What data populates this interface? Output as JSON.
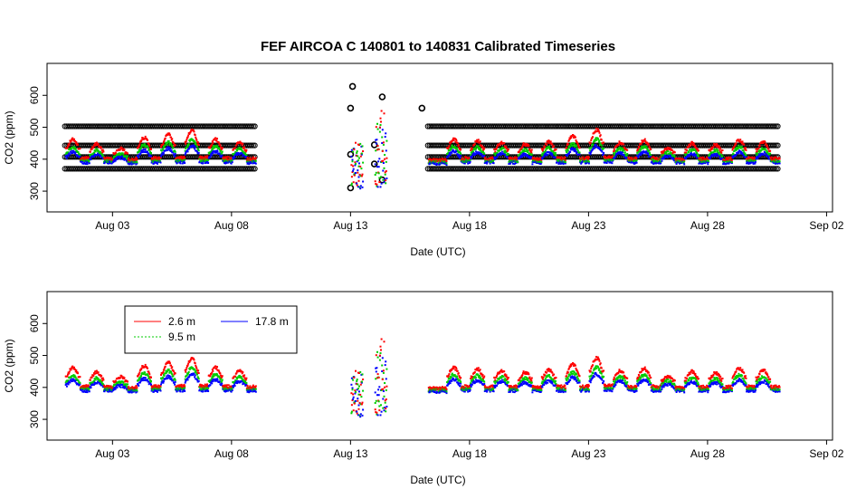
{
  "chart_data": [
    {
      "type": "scatter",
      "title": "FEF   AIRCOA  C    140801  to  140831   Calibrated Timeseries",
      "xlabel": "Date (UTC)",
      "ylabel": "CO2 (ppm)",
      "x_ticks": [
        "Aug 03",
        "Aug 08",
        "Aug 13",
        "Aug 18",
        "Aug 23",
        "Aug 28",
        "Sep 02"
      ],
      "y_ticks": [
        300,
        400,
        500,
        600
      ],
      "xlim": [
        "2014-07-31 06:00",
        "2014-09-02 06:00"
      ],
      "ylim": [
        235,
        700
      ],
      "grid": false,
      "legend": null,
      "calibration_levels_ppm": [
        370,
        407,
        443,
        503
      ],
      "calibration_periods": [
        [
          "2014-08-01 00:00",
          "2014-08-09 00:00"
        ],
        [
          "2014-08-16 06:00",
          "2014-08-31 00:00"
        ]
      ],
      "calibration_markers": [
        {
          "x": "2014-08-13 00:00",
          "y": 560
        },
        {
          "x": "2014-08-13 00:00",
          "y": 415
        },
        {
          "x": "2014-08-13 00:00",
          "y": 310
        },
        {
          "x": "2014-08-13 02:00",
          "y": 628
        },
        {
          "x": "2014-08-14 00:00",
          "y": 445
        },
        {
          "x": "2014-08-14 00:00",
          "y": 385
        },
        {
          "x": "2014-08-14 08:00",
          "y": 595
        },
        {
          "x": "2014-08-14 08:00",
          "y": 335
        },
        {
          "x": "2014-08-16 00:00",
          "y": 560
        }
      ],
      "series": [
        {
          "name": "2.6 m",
          "color": "#ff0000",
          "baseline": 400,
          "daily_peak_excess": [
            65,
            50,
            35,
            70,
            80,
            95,
            65,
            55,
            45,
            48,
            0,
            0,
            0,
            95,
            135,
            0,
            65,
            60,
            55,
            50,
            58,
            75,
            95,
            55,
            62,
            38,
            52,
            48,
            62,
            55,
            48,
            45,
            52
          ]
        },
        {
          "name": "9.5 m",
          "color": "#00cc00",
          "baseline": 395,
          "daily_peak_excess": [
            45,
            36,
            25,
            52,
            60,
            70,
            48,
            40,
            34,
            36,
            0,
            0,
            0,
            70,
            100,
            0,
            48,
            45,
            40,
            36,
            42,
            55,
            70,
            40,
            46,
            28,
            38,
            35,
            46,
            40,
            35,
            33,
            38
          ]
        },
        {
          "name": "17.8 m",
          "color": "#0000ff",
          "baseline": 390,
          "daily_peak_excess": [
            35,
            28,
            18,
            40,
            46,
            55,
            38,
            32,
            26,
            28,
            0,
            0,
            0,
            55,
            80,
            0,
            38,
            35,
            32,
            28,
            33,
            44,
            55,
            32,
            36,
            22,
            30,
            28,
            36,
            32,
            28,
            26,
            30
          ]
        }
      ],
      "data_periods": [
        [
          "2014-08-01 00:00",
          "2014-08-09 00:00"
        ],
        [
          "2014-08-13 00:00",
          "2014-08-13 12:00"
        ],
        [
          "2014-08-14 00:00",
          "2014-08-14 12:00"
        ],
        [
          "2014-08-16 06:00",
          "2014-08-31 00:00"
        ]
      ]
    },
    {
      "type": "scatter",
      "title": "",
      "xlabel": "Date (UTC)",
      "ylabel": "CO2 (ppm)",
      "x_ticks": [
        "Aug 03",
        "Aug 08",
        "Aug 13",
        "Aug 18",
        "Aug 23",
        "Aug 28",
        "Sep 02"
      ],
      "y_ticks": [
        300,
        400,
        500,
        600
      ],
      "xlim": [
        "2014-07-31 06:00",
        "2014-09-02 06:00"
      ],
      "ylim": [
        235,
        700
      ],
      "grid": false,
      "legend": {
        "placement": "top-left",
        "entries": [
          "2.6 m",
          "9.5 m",
          "17.8 m"
        ]
      },
      "series_ref": "same as chart 1 series (calibration markers omitted)"
    }
  ],
  "legend": {
    "items": [
      {
        "label": "2.6 m",
        "color": "#ff0000"
      },
      {
        "label": "9.5 m",
        "color": "#00cc00"
      },
      {
        "label": "17.8 m",
        "color": "#0000ff"
      }
    ]
  }
}
